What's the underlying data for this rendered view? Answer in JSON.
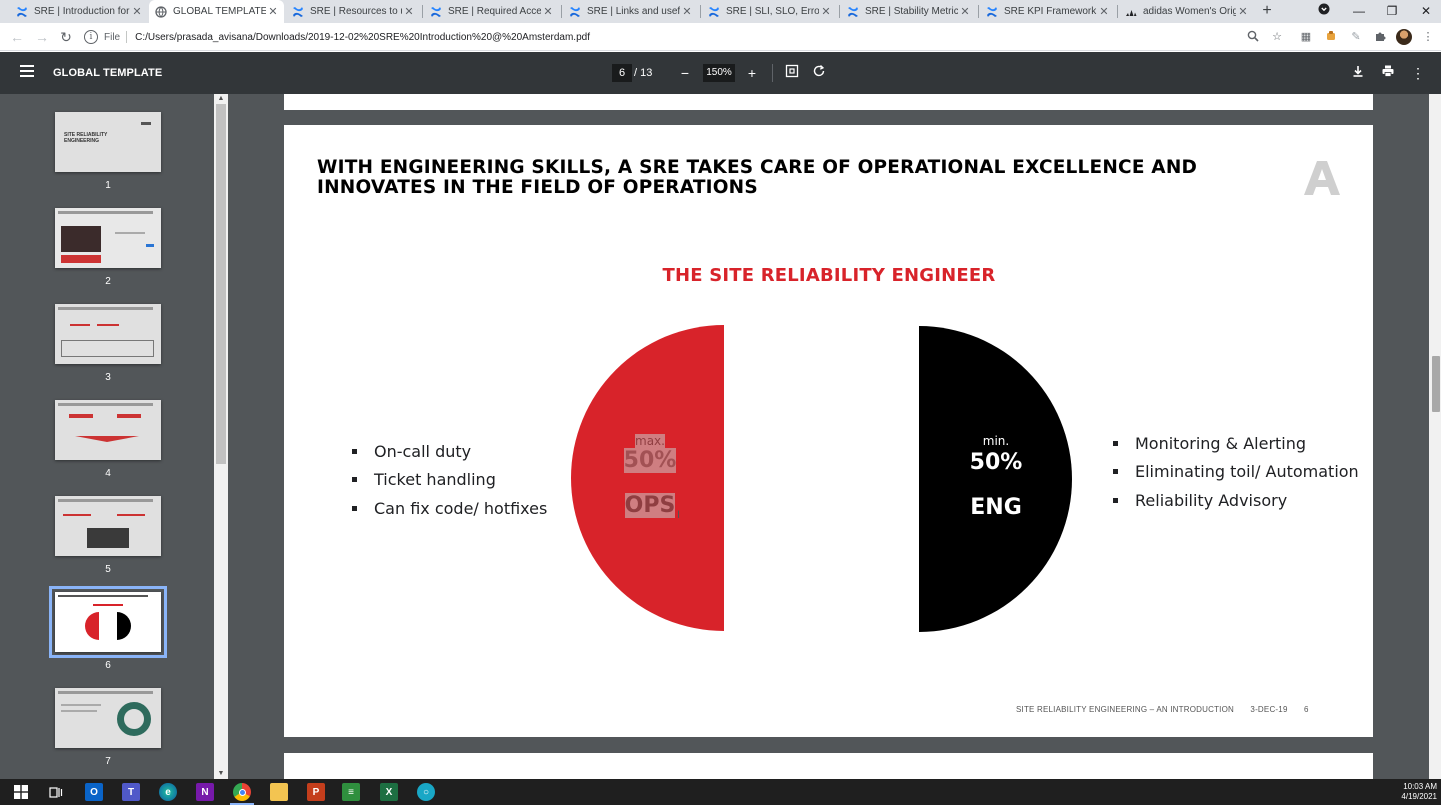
{
  "browser": {
    "tabs": [
      {
        "label": "SRE | Introduction for",
        "icon": "confluence-icon",
        "active": false
      },
      {
        "label": "GLOBAL TEMPLATE",
        "icon": "globe-icon",
        "active": true
      },
      {
        "label": "SRE | Resources to und",
        "icon": "confluence-icon",
        "active": false
      },
      {
        "label": "SRE | Required Access",
        "icon": "confluence-icon",
        "active": false
      },
      {
        "label": "SRE | Links and useful",
        "icon": "confluence-icon",
        "active": false
      },
      {
        "label": "SRE | SLI, SLO, Error Bu",
        "icon": "confluence-icon",
        "active": false
      },
      {
        "label": "SRE | Stability Metrics",
        "icon": "confluence-icon",
        "active": false
      },
      {
        "label": "SRE KPI Framework - I",
        "icon": "confluence-icon",
        "active": false
      },
      {
        "label": "adidas Women's Origi",
        "icon": "adidas-icon",
        "active": false
      }
    ],
    "address": {
      "scheme_label": "File",
      "url": "C:/Users/prasada_avisana/Downloads/2019-12-02%20SRE%20Introduction%20@%20Amsterdam.pdf"
    }
  },
  "pdf": {
    "title": "GLOBAL TEMPLATE",
    "current_page": "6",
    "total_pages": "/ 13",
    "zoom": "150%",
    "thumbnails": [
      {
        "num": "1",
        "selected": false
      },
      {
        "num": "2",
        "selected": false
      },
      {
        "num": "3",
        "selected": false
      },
      {
        "num": "4",
        "selected": false
      },
      {
        "num": "5",
        "selected": false
      },
      {
        "num": "6",
        "selected": true
      },
      {
        "num": "7",
        "selected": false
      }
    ],
    "thumb1_text": "SITE RELIABILITY ENGINEERING"
  },
  "slide": {
    "title_line1": "WITH ENGINEERING SKILLS, A SRE TAKES CARE OF OPERATIONAL EXCELLENCE AND",
    "title_line2": "INNOVATES IN THE FIELD OF OPERATIONS",
    "subtitle": "THE SITE RELIABILITY ENGINEER",
    "ops": {
      "qualifier": "max.",
      "percent": "50%",
      "name": "OPS",
      "share": 0.5
    },
    "eng": {
      "qualifier": "min.",
      "percent": "50%",
      "name": "ENG",
      "share": 0.5
    },
    "left_bullets": [
      "On-call duty",
      "Ticket handling",
      "Can fix code/ hotfixes"
    ],
    "right_bullets": [
      "Monitoring & Alerting",
      "Eliminating toil/ Automation",
      "Reliability Advisory"
    ],
    "footer_text": "SITE RELIABILITY ENGINEERING – AN INTRODUCTION",
    "footer_date": "3-DEC-19",
    "footer_page": "6"
  },
  "taskbar": {
    "time": "10:03 AM",
    "date": "4/19/2021"
  },
  "colors": {
    "accent_red": "#d8232a",
    "black": "#000000",
    "toolbar": "#323639",
    "viewer_bg": "#525659"
  }
}
